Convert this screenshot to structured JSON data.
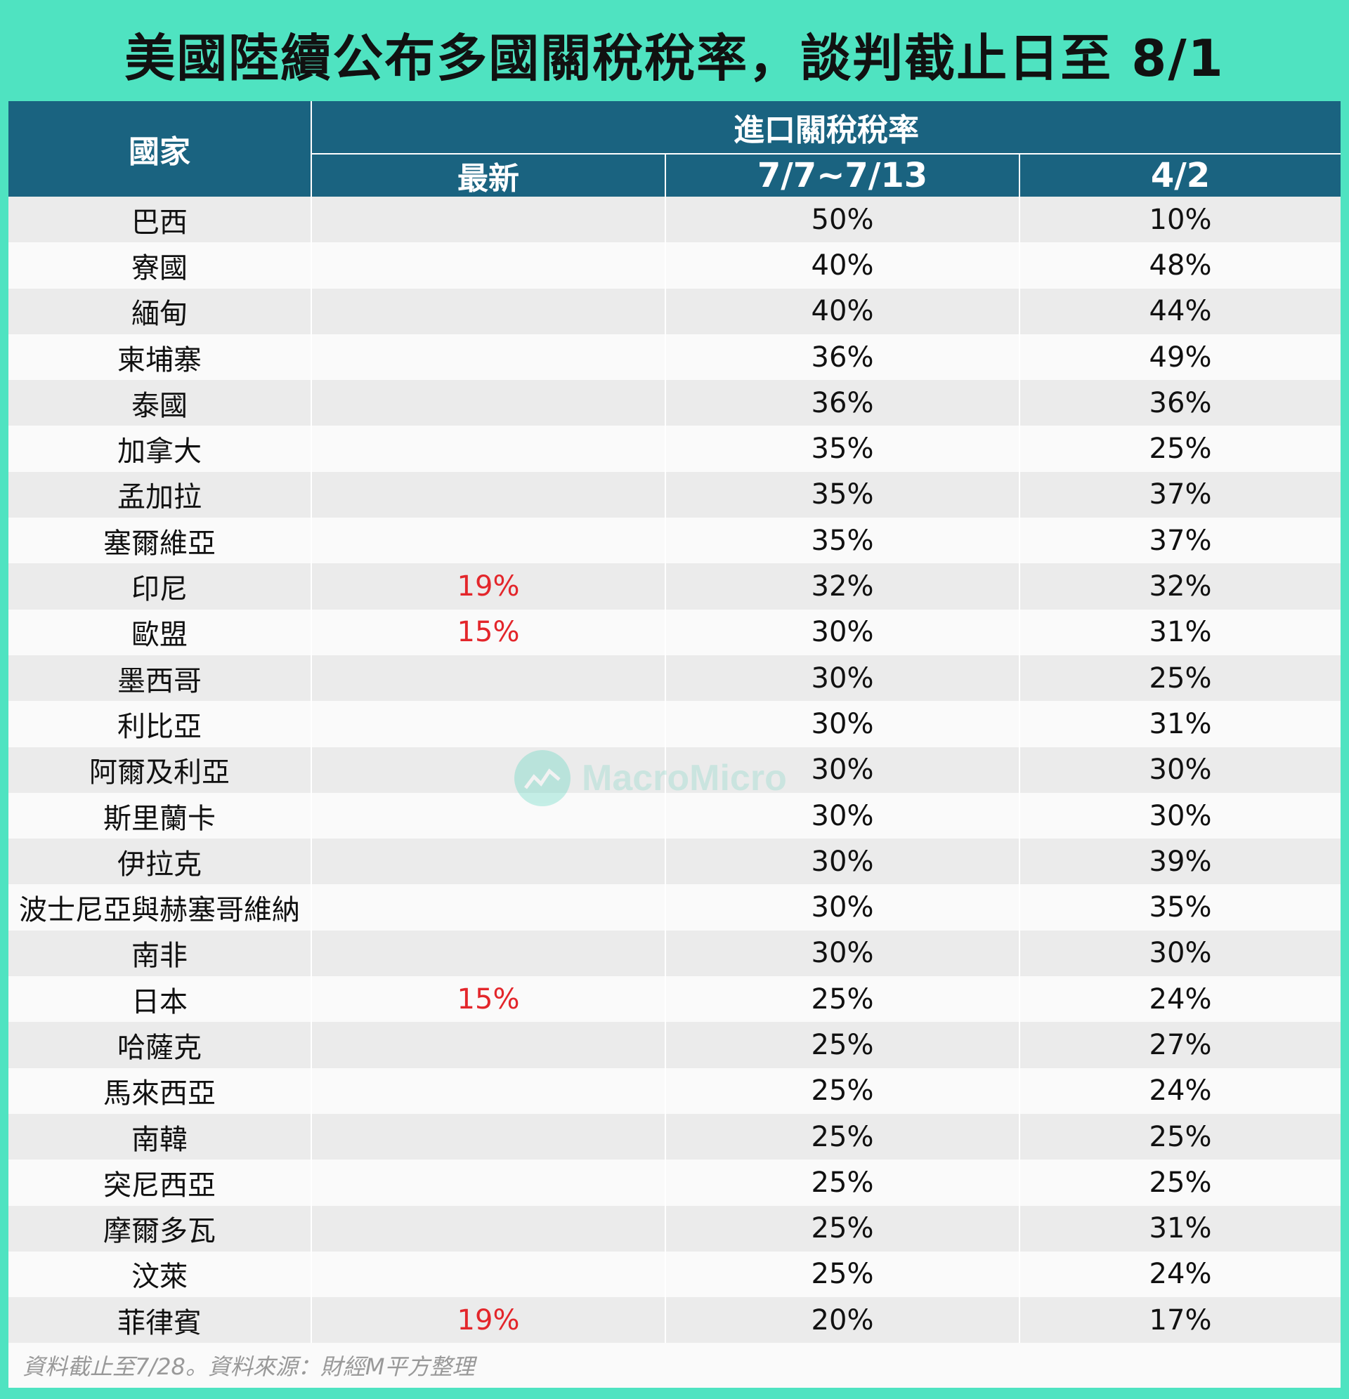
{
  "title": "美國陸續公布多國關稅稅率，談判截止日至 8/1",
  "header": {
    "country": "國家",
    "group": "進口關稅稅率",
    "latest": "最新",
    "mid": "7/7~7/13",
    "apr": "4/2"
  },
  "rows": [
    {
      "country": "巴西",
      "latest": "",
      "mid": "50%",
      "apr": "10%"
    },
    {
      "country": "寮國",
      "latest": "",
      "mid": "40%",
      "apr": "48%"
    },
    {
      "country": "緬甸",
      "latest": "",
      "mid": "40%",
      "apr": "44%"
    },
    {
      "country": "柬埔寨",
      "latest": "",
      "mid": "36%",
      "apr": "49%"
    },
    {
      "country": "泰國",
      "latest": "",
      "mid": "36%",
      "apr": "36%"
    },
    {
      "country": "加拿大",
      "latest": "",
      "mid": "35%",
      "apr": "25%"
    },
    {
      "country": "孟加拉",
      "latest": "",
      "mid": "35%",
      "apr": "37%"
    },
    {
      "country": "塞爾維亞",
      "latest": "",
      "mid": "35%",
      "apr": "37%"
    },
    {
      "country": "印尼",
      "latest": "19%",
      "mid": "32%",
      "apr": "32%"
    },
    {
      "country": "歐盟",
      "latest": "15%",
      "mid": "30%",
      "apr": "31%"
    },
    {
      "country": "墨西哥",
      "latest": "",
      "mid": "30%",
      "apr": "25%"
    },
    {
      "country": "利比亞",
      "latest": "",
      "mid": "30%",
      "apr": "31%"
    },
    {
      "country": "阿爾及利亞",
      "latest": "",
      "mid": "30%",
      "apr": "30%"
    },
    {
      "country": "斯里蘭卡",
      "latest": "",
      "mid": "30%",
      "apr": "30%"
    },
    {
      "country": "伊拉克",
      "latest": "",
      "mid": "30%",
      "apr": "39%"
    },
    {
      "country": "波士尼亞與赫塞哥維納",
      "latest": "",
      "mid": "30%",
      "apr": "35%"
    },
    {
      "country": "南非",
      "latest": "",
      "mid": "30%",
      "apr": "30%"
    },
    {
      "country": "日本",
      "latest": "15%",
      "mid": "25%",
      "apr": "24%"
    },
    {
      "country": "哈薩克",
      "latest": "",
      "mid": "25%",
      "apr": "27%"
    },
    {
      "country": "馬來西亞",
      "latest": "",
      "mid": "25%",
      "apr": "24%"
    },
    {
      "country": "南韓",
      "latest": "",
      "mid": "25%",
      "apr": "25%"
    },
    {
      "country": "突尼西亞",
      "latest": "",
      "mid": "25%",
      "apr": "25%"
    },
    {
      "country": "摩爾多瓦",
      "latest": "",
      "mid": "25%",
      "apr": "31%"
    },
    {
      "country": "汶萊",
      "latest": "",
      "mid": "25%",
      "apr": "24%"
    },
    {
      "country": "菲律賓",
      "latest": "19%",
      "mid": "20%",
      "apr": "17%"
    }
  ],
  "footer": "資料截止至7/28。資料來源：財經M平方整理",
  "watermark": "MacroMicro",
  "colors": {
    "background": "#4fe3c1",
    "header": "#1a6380",
    "latest": "#e3262b"
  }
}
